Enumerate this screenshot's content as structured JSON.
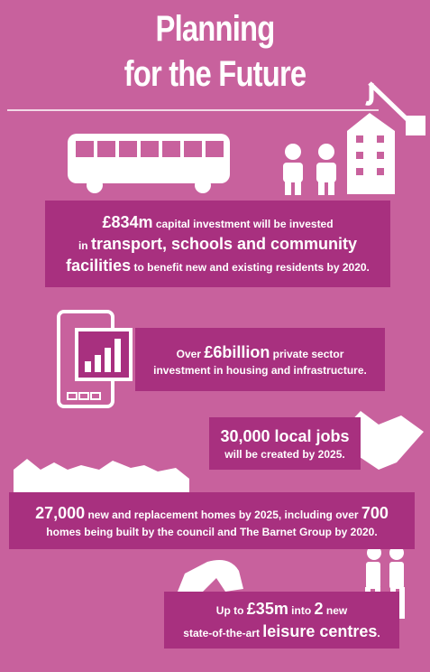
{
  "title": {
    "line1": "Planning",
    "line2": "for the Future"
  },
  "blocks": [
    {
      "lines": [
        [
          {
            "text": "£834m",
            "big": true
          },
          {
            "text": " capital investment will be invested",
            "big": false
          }
        ],
        [
          {
            "text": "in ",
            "big": false
          },
          {
            "text": "transport, schools and community",
            "big": true
          }
        ],
        [
          {
            "text": "facilities",
            "big": true
          },
          {
            "text": " to benefit new and existing residents by 2020.",
            "big": false
          }
        ]
      ]
    },
    {
      "lines": [
        [
          {
            "text": "Over ",
            "big": false
          },
          {
            "text": "£6billion",
            "big": true
          },
          {
            "text": " private sector",
            "big": false
          }
        ],
        [
          {
            "text": "investment in housing and infrastructure.",
            "big": false
          }
        ]
      ]
    },
    {
      "lines": [
        [
          {
            "text": "30,000 local jobs",
            "big": true
          }
        ],
        [
          {
            "text": "will be created by 2025.",
            "big": false
          }
        ]
      ]
    },
    {
      "lines": [
        [
          {
            "text": "27,000",
            "big": true
          },
          {
            "text": " new and replacement homes by 2025, including over ",
            "big": false
          },
          {
            "text": "700",
            "big": true
          }
        ],
        [
          {
            "text": "homes being built by the council and The Barnet Group by 2020.",
            "big": false
          }
        ]
      ]
    },
    {
      "lines": [
        [
          {
            "text": "Up to ",
            "big": false
          },
          {
            "text": "£35m",
            "big": true
          },
          {
            "text": " into ",
            "big": false
          },
          {
            "text": "2",
            "big": true
          },
          {
            "text": " new",
            "big": false
          }
        ],
        [
          {
            "text": "state-of-the-art ",
            "big": false
          },
          {
            "text": "leisure centres",
            "big": true
          },
          {
            "text": ".",
            "big": false
          }
        ]
      ]
    }
  ]
}
